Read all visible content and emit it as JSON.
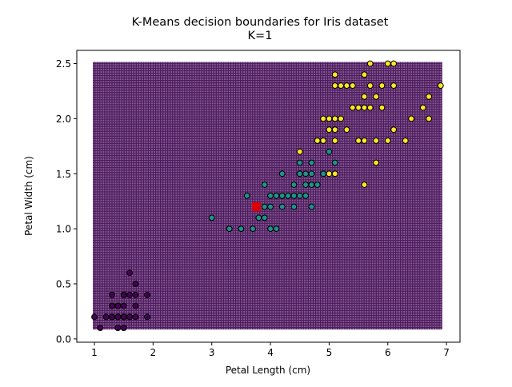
{
  "chart_data": {
    "type": "scatter",
    "title": "K-Means decision boundaries for Iris dataset",
    "subtitle": "K=1",
    "xlabel": "Petal Length (cm)",
    "ylabel": "Petal Width (cm)",
    "xlim": [
      0.7,
      7.23
    ],
    "ylim": [
      -0.03,
      2.62
    ],
    "xticks": [
      1,
      2,
      3,
      4,
      5,
      6,
      7
    ],
    "xtick_labels": [
      "1",
      "2",
      "3",
      "4",
      "5",
      "6",
      "7"
    ],
    "yticks": [
      0.0,
      0.5,
      1.0,
      1.5,
      2.0,
      2.5
    ],
    "ytick_labels": [
      "0.0",
      "0.5",
      "1.0",
      "1.5",
      "2.0",
      "2.5"
    ],
    "grid": false,
    "decision_region": {
      "x_range": [
        1.0,
        6.9
      ],
      "y_range": [
        0.1,
        2.5
      ],
      "cluster": 0,
      "color": "#440154"
    },
    "centroids": [
      {
        "x": 3.76,
        "y": 1.2,
        "color": "#dd0000"
      }
    ],
    "classes": [
      {
        "color": "#440154",
        "points": [
          [
            1.4,
            0.2
          ],
          [
            1.4,
            0.2
          ],
          [
            1.3,
            0.2
          ],
          [
            1.5,
            0.2
          ],
          [
            1.4,
            0.2
          ],
          [
            1.7,
            0.4
          ],
          [
            1.4,
            0.3
          ],
          [
            1.5,
            0.2
          ],
          [
            1.4,
            0.2
          ],
          [
            1.5,
            0.1
          ],
          [
            1.5,
            0.2
          ],
          [
            1.6,
            0.2
          ],
          [
            1.4,
            0.1
          ],
          [
            1.1,
            0.1
          ],
          [
            1.2,
            0.2
          ],
          [
            1.5,
            0.4
          ],
          [
            1.3,
            0.4
          ],
          [
            1.4,
            0.3
          ],
          [
            1.7,
            0.3
          ],
          [
            1.5,
            0.3
          ],
          [
            1.7,
            0.2
          ],
          [
            1.5,
            0.4
          ],
          [
            1.0,
            0.2
          ],
          [
            1.7,
            0.5
          ],
          [
            1.9,
            0.2
          ],
          [
            1.6,
            0.2
          ],
          [
            1.6,
            0.4
          ],
          [
            1.5,
            0.2
          ],
          [
            1.4,
            0.2
          ],
          [
            1.6,
            0.2
          ],
          [
            1.6,
            0.2
          ],
          [
            1.5,
            0.4
          ],
          [
            1.5,
            0.1
          ],
          [
            1.4,
            0.2
          ],
          [
            1.5,
            0.2
          ],
          [
            1.2,
            0.2
          ],
          [
            1.3,
            0.2
          ],
          [
            1.4,
            0.1
          ],
          [
            1.3,
            0.2
          ],
          [
            1.5,
            0.2
          ],
          [
            1.3,
            0.3
          ],
          [
            1.3,
            0.3
          ],
          [
            1.3,
            0.2
          ],
          [
            1.6,
            0.6
          ],
          [
            1.9,
            0.4
          ],
          [
            1.4,
            0.3
          ],
          [
            1.6,
            0.2
          ],
          [
            1.4,
            0.2
          ],
          [
            1.5,
            0.2
          ],
          [
            1.4,
            0.2
          ]
        ]
      },
      {
        "color": "#21918c",
        "points": [
          [
            4.7,
            1.4
          ],
          [
            4.5,
            1.5
          ],
          [
            4.9,
            1.5
          ],
          [
            4.0,
            1.3
          ],
          [
            4.6,
            1.5
          ],
          [
            4.5,
            1.3
          ],
          [
            4.7,
            1.6
          ],
          [
            3.3,
            1.0
          ],
          [
            4.6,
            1.3
          ],
          [
            3.9,
            1.4
          ],
          [
            3.5,
            1.0
          ],
          [
            4.2,
            1.5
          ],
          [
            4.0,
            1.0
          ],
          [
            4.7,
            1.4
          ],
          [
            3.6,
            1.3
          ],
          [
            4.4,
            1.4
          ],
          [
            4.5,
            1.5
          ],
          [
            4.1,
            1.0
          ],
          [
            4.5,
            1.5
          ],
          [
            3.9,
            1.1
          ],
          [
            4.8,
            1.8
          ],
          [
            4.0,
            1.3
          ],
          [
            4.9,
            1.5
          ],
          [
            4.7,
            1.2
          ],
          [
            4.3,
            1.3
          ],
          [
            4.4,
            1.4
          ],
          [
            4.8,
            1.4
          ],
          [
            5.0,
            1.7
          ],
          [
            4.5,
            1.5
          ],
          [
            3.5,
            1.0
          ],
          [
            3.8,
            1.1
          ],
          [
            3.7,
            1.0
          ],
          [
            3.9,
            1.2
          ],
          [
            5.1,
            1.6
          ],
          [
            4.5,
            1.5
          ],
          [
            4.5,
            1.6
          ],
          [
            4.7,
            1.5
          ],
          [
            4.4,
            1.3
          ],
          [
            4.1,
            1.3
          ],
          [
            4.0,
            1.3
          ],
          [
            4.4,
            1.2
          ],
          [
            4.6,
            1.4
          ],
          [
            4.0,
            1.2
          ],
          [
            3.3,
            1.0
          ],
          [
            4.2,
            1.3
          ],
          [
            4.2,
            1.2
          ],
          [
            4.2,
            1.3
          ],
          [
            4.3,
            1.3
          ],
          [
            3.0,
            1.1
          ],
          [
            4.1,
            1.3
          ]
        ]
      },
      {
        "color": "#fde725",
        "points": [
          [
            6.0,
            2.5
          ],
          [
            5.1,
            1.9
          ],
          [
            5.9,
            2.1
          ],
          [
            5.6,
            1.8
          ],
          [
            5.8,
            2.2
          ],
          [
            6.6,
            2.1
          ],
          [
            4.5,
            1.7
          ],
          [
            6.3,
            1.8
          ],
          [
            5.8,
            1.8
          ],
          [
            6.1,
            2.5
          ],
          [
            5.1,
            2.0
          ],
          [
            5.3,
            1.9
          ],
          [
            5.5,
            2.1
          ],
          [
            5.0,
            2.0
          ],
          [
            5.1,
            2.4
          ],
          [
            5.3,
            2.3
          ],
          [
            5.5,
            1.8
          ],
          [
            6.7,
            2.2
          ],
          [
            6.9,
            2.3
          ],
          [
            5.0,
            1.5
          ],
          [
            5.7,
            2.3
          ],
          [
            4.9,
            2.0
          ],
          [
            6.7,
            2.0
          ],
          [
            4.9,
            1.8
          ],
          [
            5.7,
            2.1
          ],
          [
            6.0,
            1.8
          ],
          [
            4.8,
            1.8
          ],
          [
            4.9,
            1.8
          ],
          [
            5.6,
            2.1
          ],
          [
            5.8,
            1.6
          ],
          [
            6.1,
            1.9
          ],
          [
            6.4,
            2.0
          ],
          [
            5.6,
            2.2
          ],
          [
            5.1,
            1.5
          ],
          [
            5.6,
            1.4
          ],
          [
            6.1,
            2.3
          ],
          [
            5.6,
            2.4
          ],
          [
            5.5,
            1.8
          ],
          [
            4.8,
            1.8
          ],
          [
            5.4,
            2.1
          ],
          [
            5.6,
            2.4
          ],
          [
            5.1,
            2.3
          ],
          [
            5.1,
            1.9
          ],
          [
            5.9,
            2.3
          ],
          [
            5.7,
            2.5
          ],
          [
            5.2,
            2.3
          ],
          [
            5.0,
            1.9
          ],
          [
            5.2,
            2.0
          ],
          [
            5.4,
            2.3
          ],
          [
            5.1,
            1.8
          ]
        ]
      }
    ]
  }
}
